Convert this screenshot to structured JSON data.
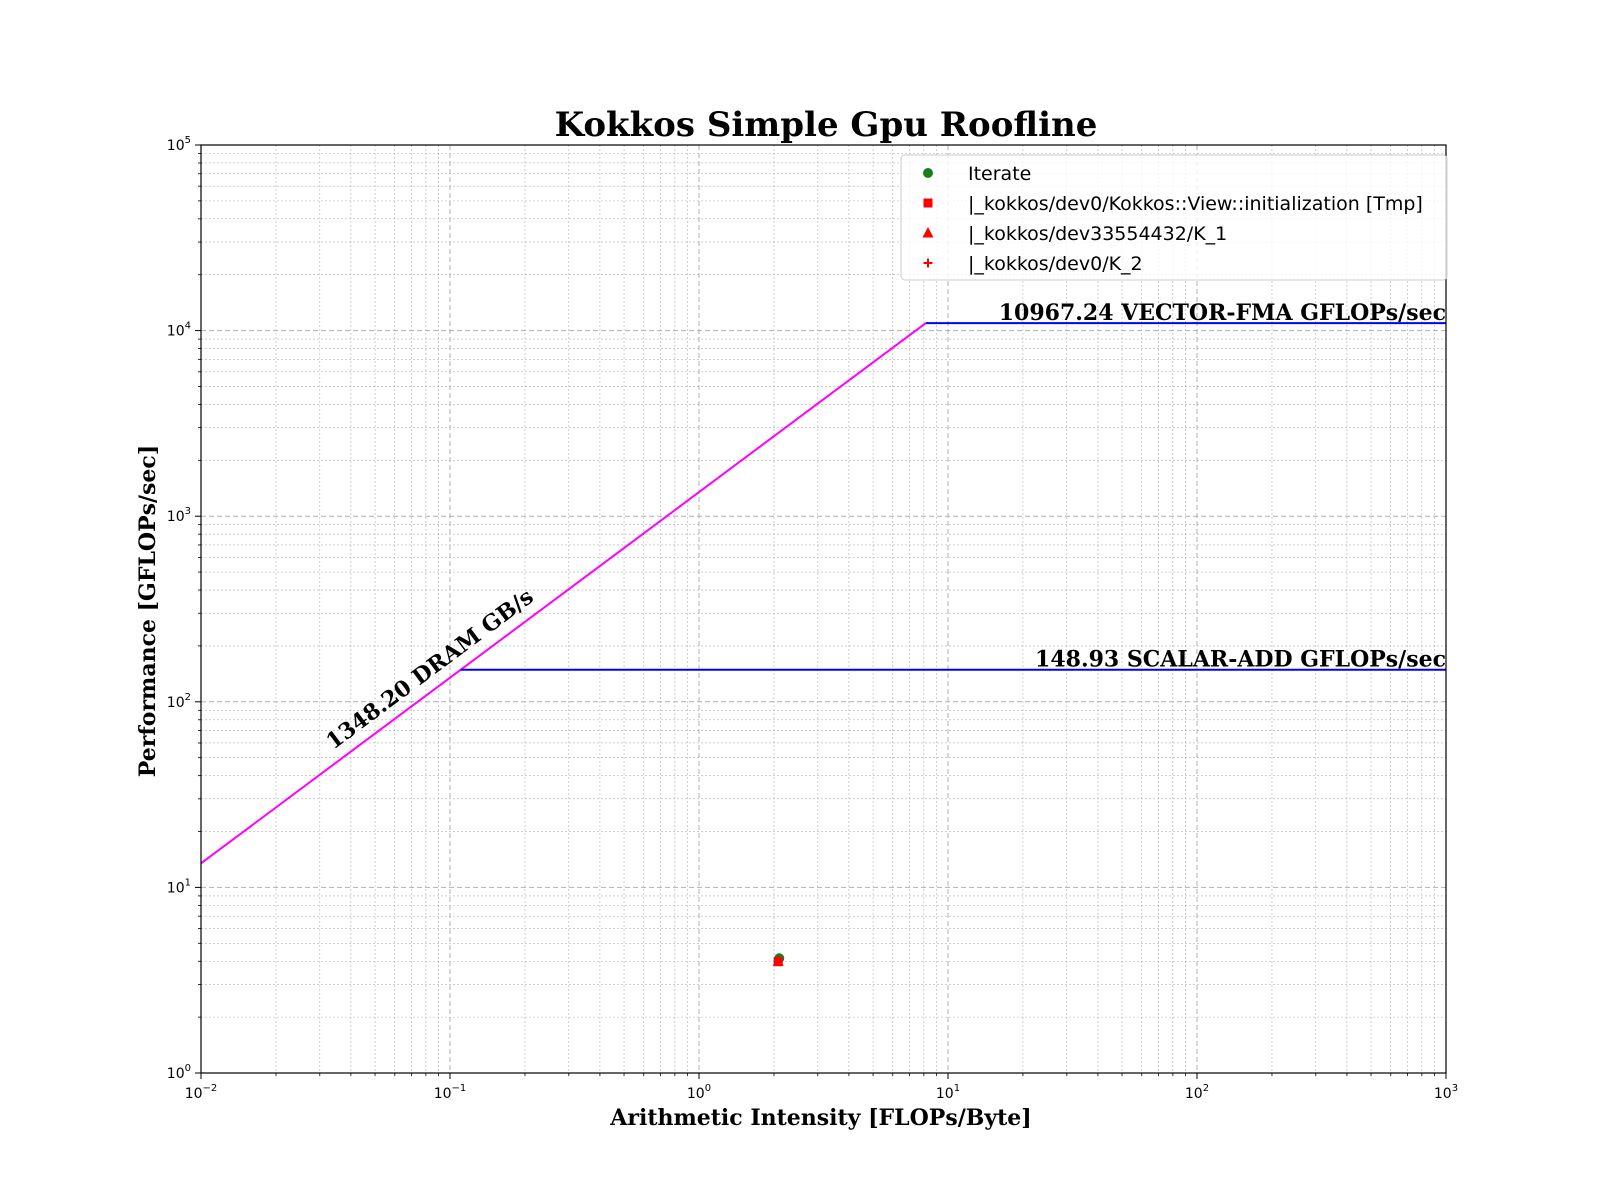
{
  "chart_data": {
    "type": "scatter",
    "title": "Kokkos Simple Gpu Roofline",
    "xlabel": "Arithmetic Intensity [FLOPs/Byte]",
    "ylabel": "Performance [GFLOPs/sec]",
    "xscale": "log",
    "yscale": "log",
    "xlim": [
      0.01,
      1000
    ],
    "ylim": [
      1,
      100000
    ],
    "x_ticks": [
      {
        "base": "10",
        "exp": "−2",
        "value": 0.01
      },
      {
        "base": "10",
        "exp": "−1",
        "value": 0.1
      },
      {
        "base": "10",
        "exp": "0",
        "value": 1
      },
      {
        "base": "10",
        "exp": "1",
        "value": 10
      },
      {
        "base": "10",
        "exp": "2",
        "value": 100
      },
      {
        "base": "10",
        "exp": "3",
        "value": 1000
      }
    ],
    "y_ticks": [
      {
        "base": "10",
        "exp": "0",
        "value": 1
      },
      {
        "base": "10",
        "exp": "1",
        "value": 10
      },
      {
        "base": "10",
        "exp": "2",
        "value": 100
      },
      {
        "base": "10",
        "exp": "3",
        "value": 1000
      },
      {
        "base": "10",
        "exp": "4",
        "value": 10000
      },
      {
        "base": "10",
        "exp": "5",
        "value": 100000
      }
    ],
    "grid": "major and minor, dashed",
    "legend_position": "top-right",
    "memory_roof": {
      "label": "1348.20 DRAM GB/s",
      "bandwidth": 1348.2,
      "color": "#ff00ff"
    },
    "compute_roofs": [
      {
        "label": "10967.24 VECTOR-FMA GFLOPs/sec",
        "value": 10967.24,
        "color": "#0000ff"
      },
      {
        "label": "148.93 SCALAR-ADD GFLOPs/sec",
        "value": 148.93,
        "color": "#0000ff"
      }
    ],
    "series": [
      {
        "name": "Iterate",
        "marker": "circle",
        "color": "#1a7f1a",
        "points": [
          {
            "x": 2.1,
            "y": 4.15
          }
        ]
      },
      {
        "name": "|_kokkos/dev0/Kokkos::View::initialization [Tmp]",
        "marker": "square",
        "color": "#ff0000",
        "points": [
          {
            "x": 2.08,
            "y": 3.98
          }
        ]
      },
      {
        "name": "|_kokkos/dev33554432/K_1",
        "marker": "triangle",
        "color": "#ff0000",
        "points": [
          {
            "x": 2.08,
            "y": 4.0
          }
        ]
      },
      {
        "name": "|_kokkos/dev0/K_2",
        "marker": "plus",
        "color": "#ff0000",
        "points": [
          {
            "x": 2.08,
            "y": 4.0
          }
        ]
      }
    ]
  }
}
